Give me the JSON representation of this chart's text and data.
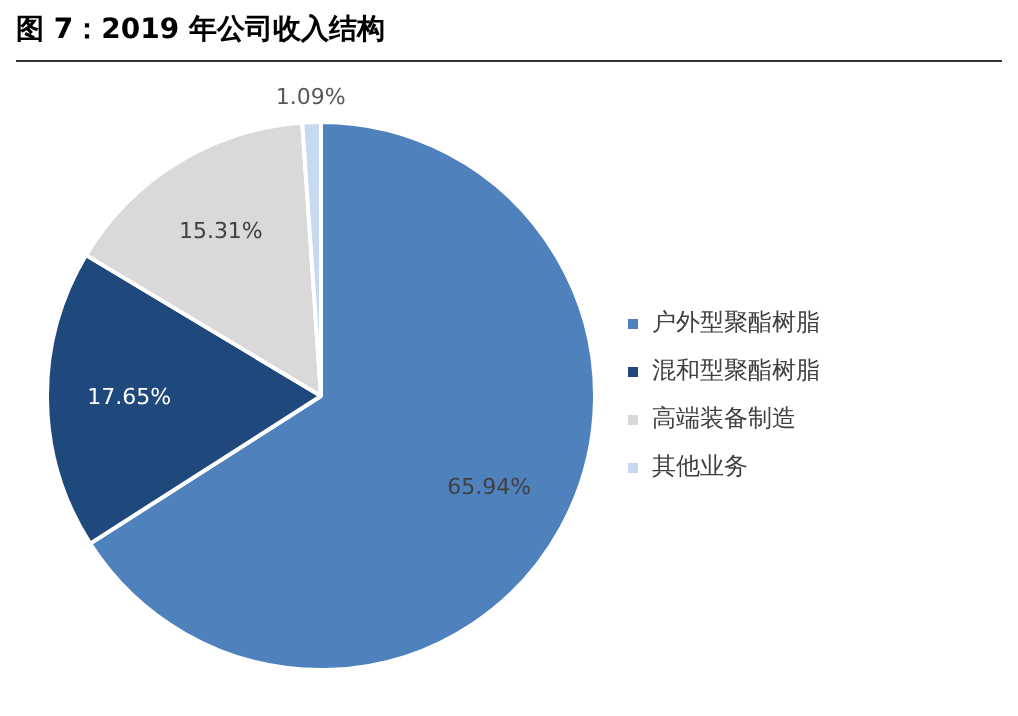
{
  "chart_data": {
    "type": "pie",
    "title": "图 7：2019 年公司收入结构",
    "categories": [
      "户外型聚酯树脂",
      "混和型聚酯树脂",
      "高端装备制造",
      "其他业务"
    ],
    "values": [
      65.94,
      17.65,
      15.31,
      1.09
    ],
    "colors": [
      "#4f81bd",
      "#1f497d",
      "#d9d9d9",
      "#c6d9f1"
    ],
    "value_labels": [
      "65.94%",
      "17.65%",
      "15.31%",
      "1.09%"
    ],
    "legend": "right"
  }
}
